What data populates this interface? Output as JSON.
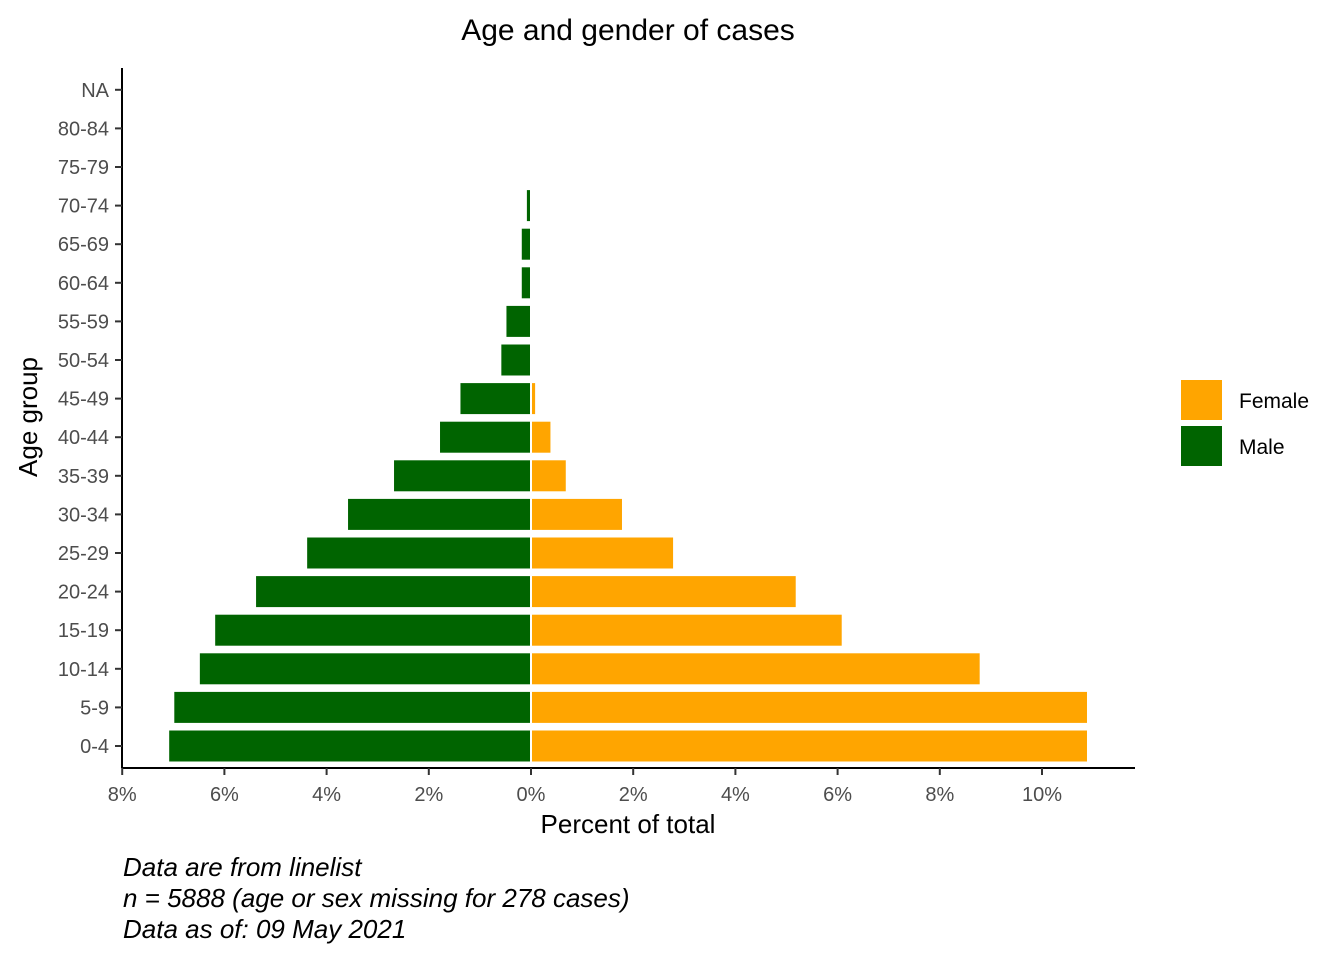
{
  "chart_data": {
    "type": "bar",
    "orientation": "horizontal",
    "layout": "population-pyramid",
    "title": "Age and gender of cases",
    "xlabel": "Percent of total",
    "ylabel": "Age group",
    "categories": [
      "0-4",
      "5-9",
      "10-14",
      "15-19",
      "20-24",
      "25-29",
      "30-34",
      "35-39",
      "40-44",
      "45-49",
      "50-54",
      "55-59",
      "60-64",
      "65-69",
      "70-74",
      "75-79",
      "80-84",
      "NA"
    ],
    "series": [
      {
        "name": "Female",
        "color": "#FFA500",
        "side": "right",
        "values": [
          10.9,
          10.9,
          8.8,
          6.1,
          5.2,
          2.8,
          1.8,
          0.7,
          0.4,
          0.1,
          0,
          0,
          0,
          0,
          0,
          0,
          0,
          0
        ]
      },
      {
        "name": "Male",
        "color": "#006400",
        "side": "left",
        "values": [
          7.1,
          7.0,
          6.5,
          6.2,
          5.4,
          4.4,
          3.6,
          2.7,
          1.8,
          1.4,
          0.6,
          0.5,
          0.2,
          0.2,
          0.1,
          0,
          0,
          0
        ]
      }
    ],
    "xlim": [
      -8,
      11.8
    ],
    "x_ticks": [
      -8,
      -6,
      -4,
      -2,
      0,
      2,
      4,
      6,
      8,
      10
    ],
    "x_tick_labels": [
      "8%",
      "6%",
      "4%",
      "2%",
      "0%",
      "2%",
      "4%",
      "6%",
      "8%",
      "10%"
    ],
    "legend_position": "right",
    "grid": false
  },
  "caption": {
    "line1": "Data are from linelist",
    "line2": "n = 5888 (age or sex missing for 278 cases)",
    "line3": "Data as of: 09 May 2021"
  }
}
